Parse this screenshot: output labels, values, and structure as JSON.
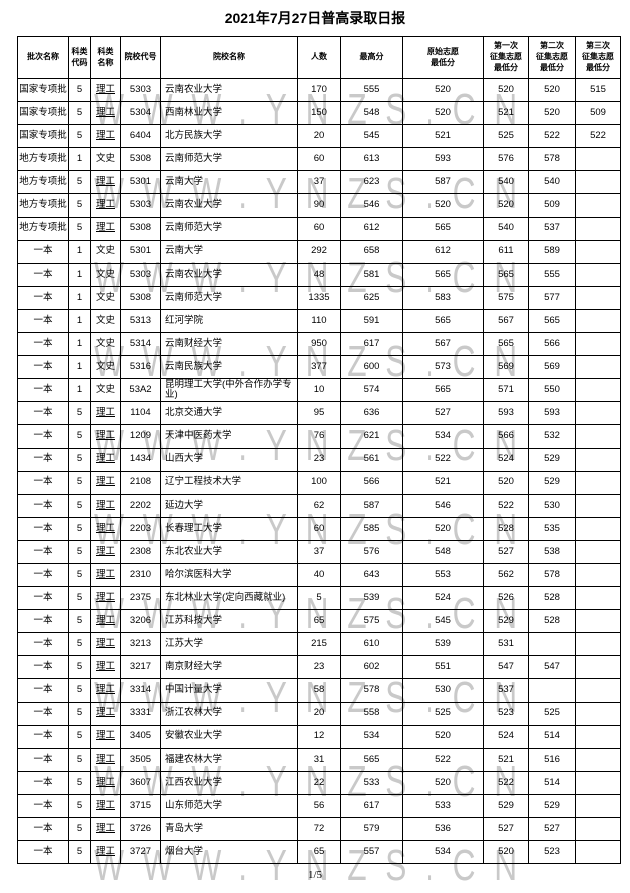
{
  "page": {
    "title": "2021年7月27日普高录取日报",
    "page_number": "1/5"
  },
  "watermark": {
    "text": "WWW.YNZS.CN"
  },
  "colors": {
    "watermark": "#c9c9c9",
    "border": "#000000",
    "text": "#000000",
    "background": "#ffffff"
  },
  "table": {
    "headers": [
      "批次名称",
      "科类\n代码",
      "科类\n名称",
      "院校代号",
      "院校名称",
      "人数",
      "最高分",
      "原始志愿\n最低分",
      "第一次\n征集志愿\n最低分",
      "第二次\n征集志愿\n最低分",
      "第三次\n征集志愿\n最低分"
    ],
    "rows": [
      [
        "国家专项批",
        "5",
        "理工",
        "5303",
        "云南农业大学",
        "170",
        "555",
        "520",
        "520",
        "520",
        "515"
      ],
      [
        "国家专项批",
        "5",
        "理工",
        "5304",
        "西南林业大学",
        "150",
        "548",
        "520",
        "521",
        "520",
        "509"
      ],
      [
        "国家专项批",
        "5",
        "理工",
        "6404",
        "北方民族大学",
        "20",
        "545",
        "521",
        "525",
        "522",
        "522"
      ],
      [
        "地方专项批",
        "1",
        "文史",
        "5308",
        "云南师范大学",
        "60",
        "613",
        "593",
        "576",
        "578",
        ""
      ],
      [
        "地方专项批",
        "5",
        "理工",
        "5301",
        "云南大学",
        "37",
        "623",
        "587",
        "540",
        "540",
        ""
      ],
      [
        "地方专项批",
        "5",
        "理工",
        "5303",
        "云南农业大学",
        "90",
        "546",
        "520",
        "520",
        "509",
        ""
      ],
      [
        "地方专项批",
        "5",
        "理工",
        "5308",
        "云南师范大学",
        "60",
        "612",
        "565",
        "540",
        "537",
        ""
      ],
      [
        "一本",
        "1",
        "文史",
        "5301",
        "云南大学",
        "292",
        "658",
        "612",
        "611",
        "589",
        ""
      ],
      [
        "一本",
        "1",
        "文史",
        "5303",
        "云南农业大学",
        "48",
        "581",
        "565",
        "565",
        "555",
        ""
      ],
      [
        "一本",
        "1",
        "文史",
        "5308",
        "云南师范大学",
        "1335",
        "625",
        "583",
        "575",
        "577",
        ""
      ],
      [
        "一本",
        "1",
        "文史",
        "5313",
        "红河学院",
        "110",
        "591",
        "565",
        "567",
        "565",
        ""
      ],
      [
        "一本",
        "1",
        "文史",
        "5314",
        "云南财经大学",
        "950",
        "617",
        "567",
        "565",
        "566",
        ""
      ],
      [
        "一本",
        "1",
        "文史",
        "5316",
        "云南民族大学",
        "377",
        "600",
        "573",
        "569",
        "569",
        ""
      ],
      [
        "一本",
        "1",
        "文史",
        "53A2",
        "昆明理工大学(中外合作办学专业)",
        "10",
        "574",
        "565",
        "571",
        "550",
        ""
      ],
      [
        "一本",
        "5",
        "理工",
        "1104",
        "北京交通大学",
        "95",
        "636",
        "527",
        "593",
        "593",
        ""
      ],
      [
        "一本",
        "5",
        "理工",
        "1209",
        "天津中医药大学",
        "76",
        "621",
        "534",
        "566",
        "532",
        ""
      ],
      [
        "一本",
        "5",
        "理工",
        "1434",
        "山西大学",
        "23",
        "561",
        "522",
        "524",
        "529",
        ""
      ],
      [
        "一本",
        "5",
        "理工",
        "2108",
        "辽宁工程技术大学",
        "100",
        "566",
        "521",
        "520",
        "529",
        ""
      ],
      [
        "一本",
        "5",
        "理工",
        "2202",
        "延边大学",
        "62",
        "587",
        "546",
        "522",
        "530",
        ""
      ],
      [
        "一本",
        "5",
        "理工",
        "2203",
        "长春理工大学",
        "60",
        "585",
        "520",
        "528",
        "535",
        ""
      ],
      [
        "一本",
        "5",
        "理工",
        "2308",
        "东北农业大学",
        "37",
        "576",
        "548",
        "527",
        "538",
        ""
      ],
      [
        "一本",
        "5",
        "理工",
        "2310",
        "哈尔滨医科大学",
        "40",
        "643",
        "553",
        "562",
        "578",
        ""
      ],
      [
        "一本",
        "5",
        "理工",
        "2375",
        "东北林业大学(定向西藏就业)",
        "5",
        "539",
        "524",
        "526",
        "528",
        ""
      ],
      [
        "一本",
        "5",
        "理工",
        "3206",
        "江苏科技大学",
        "65",
        "575",
        "545",
        "529",
        "528",
        ""
      ],
      [
        "一本",
        "5",
        "理工",
        "3213",
        "江苏大学",
        "215",
        "610",
        "539",
        "531",
        "",
        ""
      ],
      [
        "一本",
        "5",
        "理工",
        "3217",
        "南京财经大学",
        "23",
        "602",
        "551",
        "547",
        "547",
        ""
      ],
      [
        "一本",
        "5",
        "理工",
        "3314",
        "中国计量大学",
        "58",
        "578",
        "530",
        "537",
        "",
        ""
      ],
      [
        "一本",
        "5",
        "理工",
        "3331",
        "浙江农林大学",
        "20",
        "558",
        "525",
        "523",
        "525",
        ""
      ],
      [
        "一本",
        "5",
        "理工",
        "3405",
        "安徽农业大学",
        "12",
        "534",
        "520",
        "524",
        "514",
        ""
      ],
      [
        "一本",
        "5",
        "理工",
        "3505",
        "福建农林大学",
        "31",
        "565",
        "522",
        "521",
        "516",
        ""
      ],
      [
        "一本",
        "5",
        "理工",
        "3607",
        "江西农业大学",
        "22",
        "533",
        "520",
        "522",
        "514",
        ""
      ],
      [
        "一本",
        "5",
        "理工",
        "3715",
        "山东师范大学",
        "56",
        "617",
        "533",
        "529",
        "529",
        ""
      ],
      [
        "一本",
        "5",
        "理工",
        "3726",
        "青岛大学",
        "72",
        "579",
        "536",
        "527",
        "527",
        ""
      ],
      [
        "一本",
        "5",
        "理工",
        "3727",
        "烟台大学",
        "65",
        "557",
        "534",
        "520",
        "523",
        ""
      ]
    ]
  }
}
